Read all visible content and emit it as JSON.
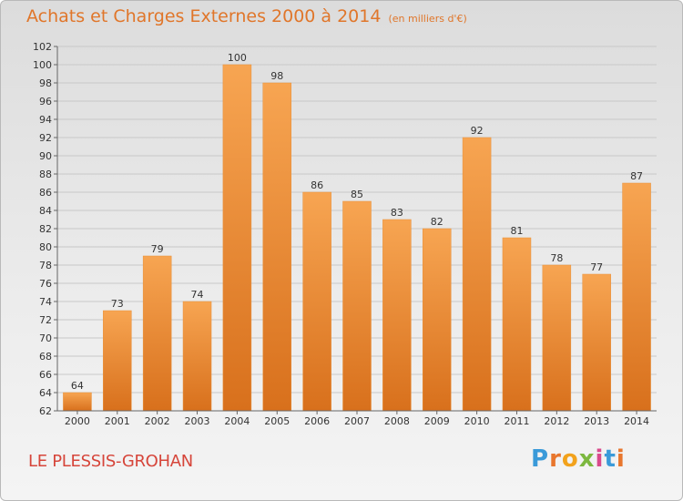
{
  "header": {
    "title": "Achats et Charges Externes 2000 à 2014",
    "unit": "(en milliers d'€)"
  },
  "footer": {
    "commune": "LE PLESSIS-GROHAN",
    "logo_letters": [
      "P",
      "r",
      "o",
      "x",
      "i",
      "t",
      "i"
    ],
    "logo_colors": [
      "#3a9ad9",
      "#e8762d",
      "#f2a21c",
      "#7cb83f",
      "#d94a8c",
      "#3a9ad9",
      "#e8762d"
    ]
  },
  "chart_data": {
    "type": "bar",
    "title": "Achats et Charges Externes 2000 à 2014",
    "xlabel": "",
    "ylabel": "(en milliers d'€)",
    "categories": [
      "2000",
      "2001",
      "2002",
      "2003",
      "2004",
      "2005",
      "2006",
      "2007",
      "2008",
      "2009",
      "2010",
      "2011",
      "2012",
      "2013",
      "2014"
    ],
    "values": [
      64,
      73,
      79,
      74,
      100,
      98,
      86,
      85,
      83,
      82,
      92,
      81,
      78,
      77,
      87
    ],
    "ylim": [
      62,
      102
    ],
    "yticks": [
      62,
      64,
      66,
      68,
      70,
      72,
      74,
      76,
      78,
      80,
      82,
      84,
      86,
      88,
      90,
      92,
      94,
      96,
      98,
      100,
      102
    ],
    "bar_color_top": "#f7a552",
    "bar_color_bottom": "#d8701c",
    "grid": true
  }
}
